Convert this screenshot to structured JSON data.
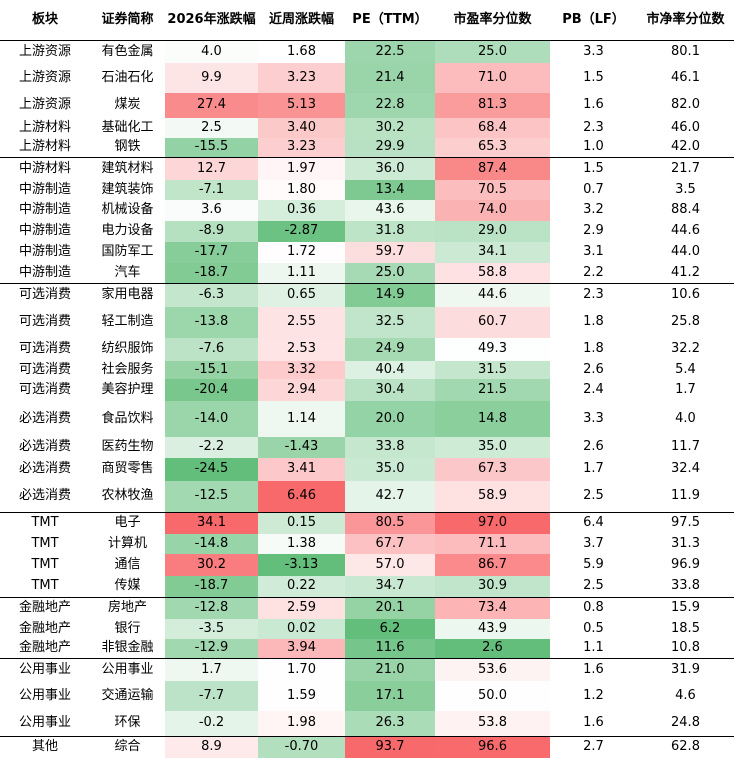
{
  "table": {
    "header": [
      "板块",
      "证券简称",
      "2026年涨跌幅",
      "近周涨跌幅",
      "PE（TTM）",
      "市盈率分位数",
      "PB（LF）",
      "市净率分位数"
    ],
    "rows": [
      [
        "上游资源",
        "有色金属",
        "4.0",
        "1.68",
        "22.5",
        "25.0",
        "3.3",
        "80.1"
      ],
      [
        "上游资源",
        "石油石化",
        "9.9",
        "3.23",
        "21.4",
        "71.0",
        "1.5",
        "46.1"
      ],
      [
        "上游资源",
        "煤炭",
        "27.4",
        "5.13",
        "22.8",
        "81.3",
        "1.6",
        "82.0"
      ],
      [
        "上游材料",
        "基础化工",
        "2.5",
        "3.40",
        "30.2",
        "68.4",
        "2.3",
        "46.0"
      ],
      [
        "上游材料",
        "钢铁",
        "-15.5",
        "3.23",
        "29.9",
        "65.3",
        "1.0",
        "42.0"
      ],
      [
        "中游材料",
        "建筑材料",
        "12.7",
        "1.97",
        "36.0",
        "87.4",
        "1.5",
        "21.7"
      ],
      [
        "中游制造",
        "建筑装饰",
        "-7.1",
        "1.80",
        "13.4",
        "70.5",
        "0.7",
        "3.5"
      ],
      [
        "中游制造",
        "机械设备",
        "3.6",
        "0.36",
        "43.6",
        "74.0",
        "3.2",
        "88.4"
      ],
      [
        "中游制造",
        "电力设备",
        "-8.9",
        "-2.87",
        "31.8",
        "29.0",
        "2.9",
        "44.6"
      ],
      [
        "中游制造",
        "国防军工",
        "-17.7",
        "1.72",
        "59.7",
        "34.1",
        "3.1",
        "44.0"
      ],
      [
        "中游制造",
        "汽车",
        "-18.7",
        "1.11",
        "25.0",
        "58.8",
        "2.2",
        "41.2"
      ],
      [
        "可选消费",
        "家用电器",
        "-6.3",
        "0.65",
        "14.9",
        "44.6",
        "2.3",
        "10.6"
      ],
      [
        "可选消费",
        "轻工制造",
        "-13.8",
        "2.55",
        "32.5",
        "60.7",
        "1.8",
        "25.8"
      ],
      [
        "可选消费",
        "纺织服饰",
        "-7.6",
        "2.53",
        "24.9",
        "49.3",
        "1.8",
        "32.2"
      ],
      [
        "可选消费",
        "社会服务",
        "-15.1",
        "3.32",
        "40.4",
        "31.5",
        "2.6",
        "5.4"
      ],
      [
        "可选消费",
        "美容护理",
        "-20.4",
        "2.94",
        "30.4",
        "21.5",
        "2.4",
        "1.7"
      ],
      [
        "必选消费",
        "食品饮料",
        "-14.0",
        "1.14",
        "20.0",
        "14.8",
        "3.3",
        "4.0"
      ],
      [
        "必选消费",
        "医药生物",
        "-2.2",
        "-1.43",
        "33.8",
        "35.0",
        "2.6",
        "11.7"
      ],
      [
        "必选消费",
        "商贸零售",
        "-24.5",
        "3.41",
        "35.0",
        "67.3",
        "1.7",
        "32.4"
      ],
      [
        "必选消费",
        "农林牧渔",
        "-12.5",
        "6.46",
        "42.7",
        "58.9",
        "2.5",
        "11.9"
      ],
      [
        "TMT",
        "电子",
        "34.1",
        "0.15",
        "80.5",
        "97.0",
        "6.4",
        "97.5"
      ],
      [
        "TMT",
        "计算机",
        "-14.8",
        "1.38",
        "67.7",
        "71.1",
        "3.7",
        "31.3"
      ],
      [
        "TMT",
        "通信",
        "30.2",
        "-3.13",
        "57.0",
        "86.7",
        "5.9",
        "96.9"
      ],
      [
        "TMT",
        "传媒",
        "-18.7",
        "0.22",
        "34.7",
        "30.9",
        "2.5",
        "33.8"
      ],
      [
        "金融地产",
        "房地产",
        "-12.8",
        "2.59",
        "20.1",
        "73.4",
        "0.8",
        "15.9"
      ],
      [
        "金融地产",
        "银行",
        "-3.5",
        "0.02",
        "6.2",
        "43.9",
        "0.5",
        "18.5"
      ],
      [
        "金融地产",
        "非银金融",
        "-12.9",
        "3.94",
        "11.6",
        "2.6",
        "1.1",
        "10.8"
      ],
      [
        "公用事业",
        "公用事业",
        "1.7",
        "1.70",
        "21.0",
        "53.6",
        "1.6",
        "31.9"
      ],
      [
        "公用事业",
        "交通运输",
        "-7.7",
        "1.59",
        "17.1",
        "50.0",
        "1.2",
        "4.6"
      ],
      [
        "公用事业",
        "环保",
        "-0.2",
        "1.98",
        "26.3",
        "53.8",
        "1.6",
        "24.8"
      ],
      [
        "其他",
        "综合",
        "8.9",
        "-0.70",
        "93.7",
        "96.6",
        "2.7",
        "62.8"
      ]
    ]
  }
}
